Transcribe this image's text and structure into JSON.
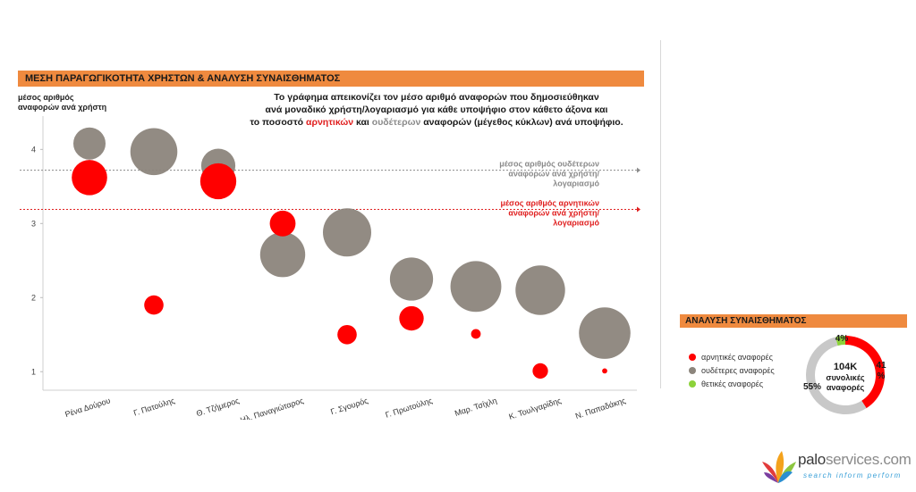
{
  "header": {
    "title": "ΜΕΣΗ ΠΑΡΑΓΩΓΙΚΟΤΗΤΑ ΧΡΗΣΤΩΝ & ΑΝΑΛΥΣΗ ΣΥΝΑΙΣΘΗΜΑΤΟΣ",
    "description_line1": "Το γράφημα απεικονίζει τον μέσο αριθμό αναφορών που δημοσιεύθηκαν",
    "description_line2": "ανά μοναδικό χρήστη/λογαριασμό για κάθε υποψήφιο στον κάθετο άξονα και",
    "description_line3_a": "το ποσοστό",
    "description_line3_neg": "αρνητικών",
    "description_line3_b": "και",
    "description_line3_neu": "ουδέτερων",
    "description_line3_c": "αναφορών (μέγεθος κύκλων) ανά υποψήφιο."
  },
  "chart_data": {
    "type": "bubble",
    "ylabel_line1": "μέσος αριθμός",
    "ylabel_line2": "αναφορών ανά χρήστη",
    "ylim": [
      0.75,
      4.45
    ],
    "yticks": [
      "1",
      "2",
      "3",
      "4"
    ],
    "categories": [
      "Ρένα Δούρου",
      "Γ. Πατούλης",
      "Θ. Τζήμερος",
      "Ηλ. Παναγιώταρος",
      "Γ. Σγουρός",
      "Γ. Πρωτούλης",
      "Μαρ. Τσίχλη",
      "Κ. Τουλγαρίδης",
      "Ν. Παπαδάκης"
    ],
    "series": [
      {
        "key": "neutral",
        "color": "#8c857c",
        "values": [
          4.08,
          3.97,
          3.78,
          2.58,
          2.88,
          2.25,
          2.15,
          2.1,
          1.52
        ],
        "sizes": [
          0.5,
          0.73,
          0.53,
          0.7,
          0.75,
          0.67,
          0.79,
          0.77,
          0.8
        ]
      },
      {
        "key": "negative",
        "color": "#ff0000",
        "values": [
          3.62,
          1.9,
          3.57,
          3.0,
          1.5,
          1.72,
          1.51,
          1.01,
          1.01
        ],
        "sizes": [
          0.55,
          0.3,
          0.56,
          0.4,
          0.3,
          0.38,
          0.15,
          0.24,
          0.08
        ]
      }
    ],
    "reference_lines": [
      {
        "key": "neutral_avg",
        "value": 3.72,
        "color": "#8a8a8a",
        "label_line1": "μέσος αριθμός ουδέτερων",
        "label_line2": "αναφορών ανά χρήστη/",
        "label_line3": "λογαριασμό"
      },
      {
        "key": "negative_avg",
        "value": 3.19,
        "color": "#e02020",
        "label_line1": "μέσος αριθμός αρνητικών",
        "label_line2": "αναφορών ανά χρήστη/",
        "label_line3": "λογαριασμό"
      }
    ]
  },
  "sentiment": {
    "title": "ΑΝΑΛΥΣΗ ΣΥΝΑΙΣΘΗΜΑΤΟΣ",
    "total_value": "104K",
    "total_line1": "συνολικές",
    "total_line2": "αναφορές",
    "legend": [
      {
        "label": "αρνητικές αναφορές",
        "color": "#ff0000"
      },
      {
        "label": "ουδέτερες αναφορές",
        "color": "#8c857c"
      },
      {
        "label": "θετικές αναφορές",
        "color": "#8cd23a"
      }
    ],
    "chart_data": {
      "type": "pie",
      "slices": [
        {
          "label": "αρνητικές αναφορές",
          "value": 41,
          "text": "41%",
          "color": "#ff0000"
        },
        {
          "label": "ουδέτερες αναφορές",
          "value": 55,
          "text": "55%",
          "color": "#c8c8c8"
        },
        {
          "label": "θετικές αναφορές",
          "value": 4,
          "text": "4%",
          "color": "#8cd23a"
        }
      ]
    }
  },
  "logo": {
    "name": "palo",
    "domain": "services.com",
    "tagline": "search inform perform"
  }
}
